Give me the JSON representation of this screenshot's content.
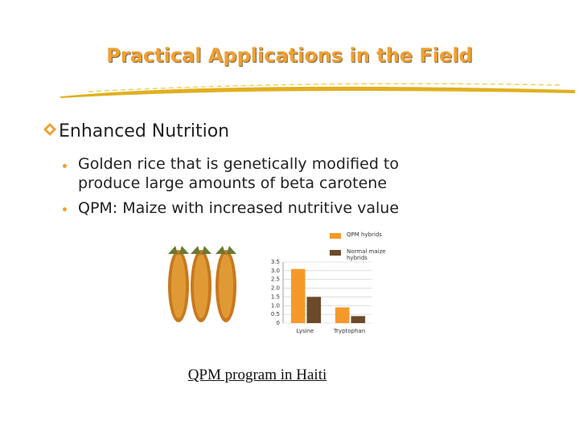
{
  "header": {
    "title": "Practical Applications in the Field"
  },
  "bullets": [
    {
      "text": "Enhanced Nutrition",
      "items": [
        "Golden rice that is genetically modified to produce large amounts of beta carotene",
        "QPM: Maize with increased nutritive value"
      ]
    }
  ],
  "chart": {
    "type": "bar",
    "categories": [
      "Lysine",
      "Tryptophan"
    ],
    "series": [
      {
        "name": "QPM hybrids",
        "color": "#f39a2a",
        "values": [
          3.1,
          0.9
        ]
      },
      {
        "name": "Normal maize hybrids",
        "color": "#6b4a2a",
        "values": [
          1.5,
          0.4
        ]
      }
    ],
    "ylim": [
      0,
      3.5
    ],
    "yticks": [
      0,
      0.5,
      {
        "value": 1,
        "label": "1.0"
      },
      1.5,
      {
        "value": 2,
        "label": "2.0"
      },
      2.5,
      {
        "value": 3,
        "label": "3.0"
      },
      3.5
    ],
    "grid": true,
    "legend": "top"
  },
  "caption": "QPM program in Haiti"
}
